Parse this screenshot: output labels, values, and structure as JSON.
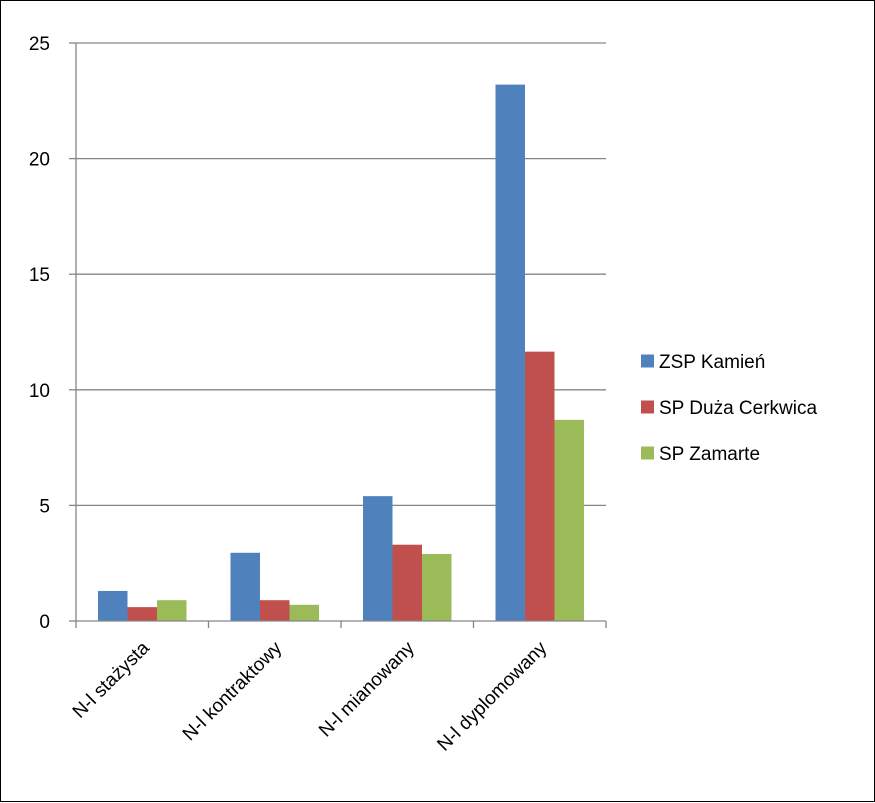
{
  "chart_data": {
    "type": "bar",
    "categories": [
      "N-l stażysta",
      "N-l kontraktowy",
      "N-l mianowany",
      "N-l dyplomowany"
    ],
    "series": [
      {
        "name": "ZSP Kamień",
        "values": [
          1.3,
          2.95,
          5.4,
          23.2
        ]
      },
      {
        "name": "SP Duża Cerkwica",
        "values": [
          0.6,
          0.9,
          3.3,
          11.65
        ]
      },
      {
        "name": "SP Zamarte",
        "values": [
          0.9,
          0.7,
          2.9,
          8.7
        ]
      }
    ],
    "ylim": [
      0,
      25
    ],
    "yticks": [
      0,
      5,
      10,
      15,
      20,
      25
    ],
    "grid": true,
    "legend_position": "right",
    "colors": [
      "#4f81bd",
      "#c0504d",
      "#9bbb59"
    ],
    "gridline_color": "#868686",
    "title": "",
    "xlabel": "",
    "ylabel": ""
  }
}
